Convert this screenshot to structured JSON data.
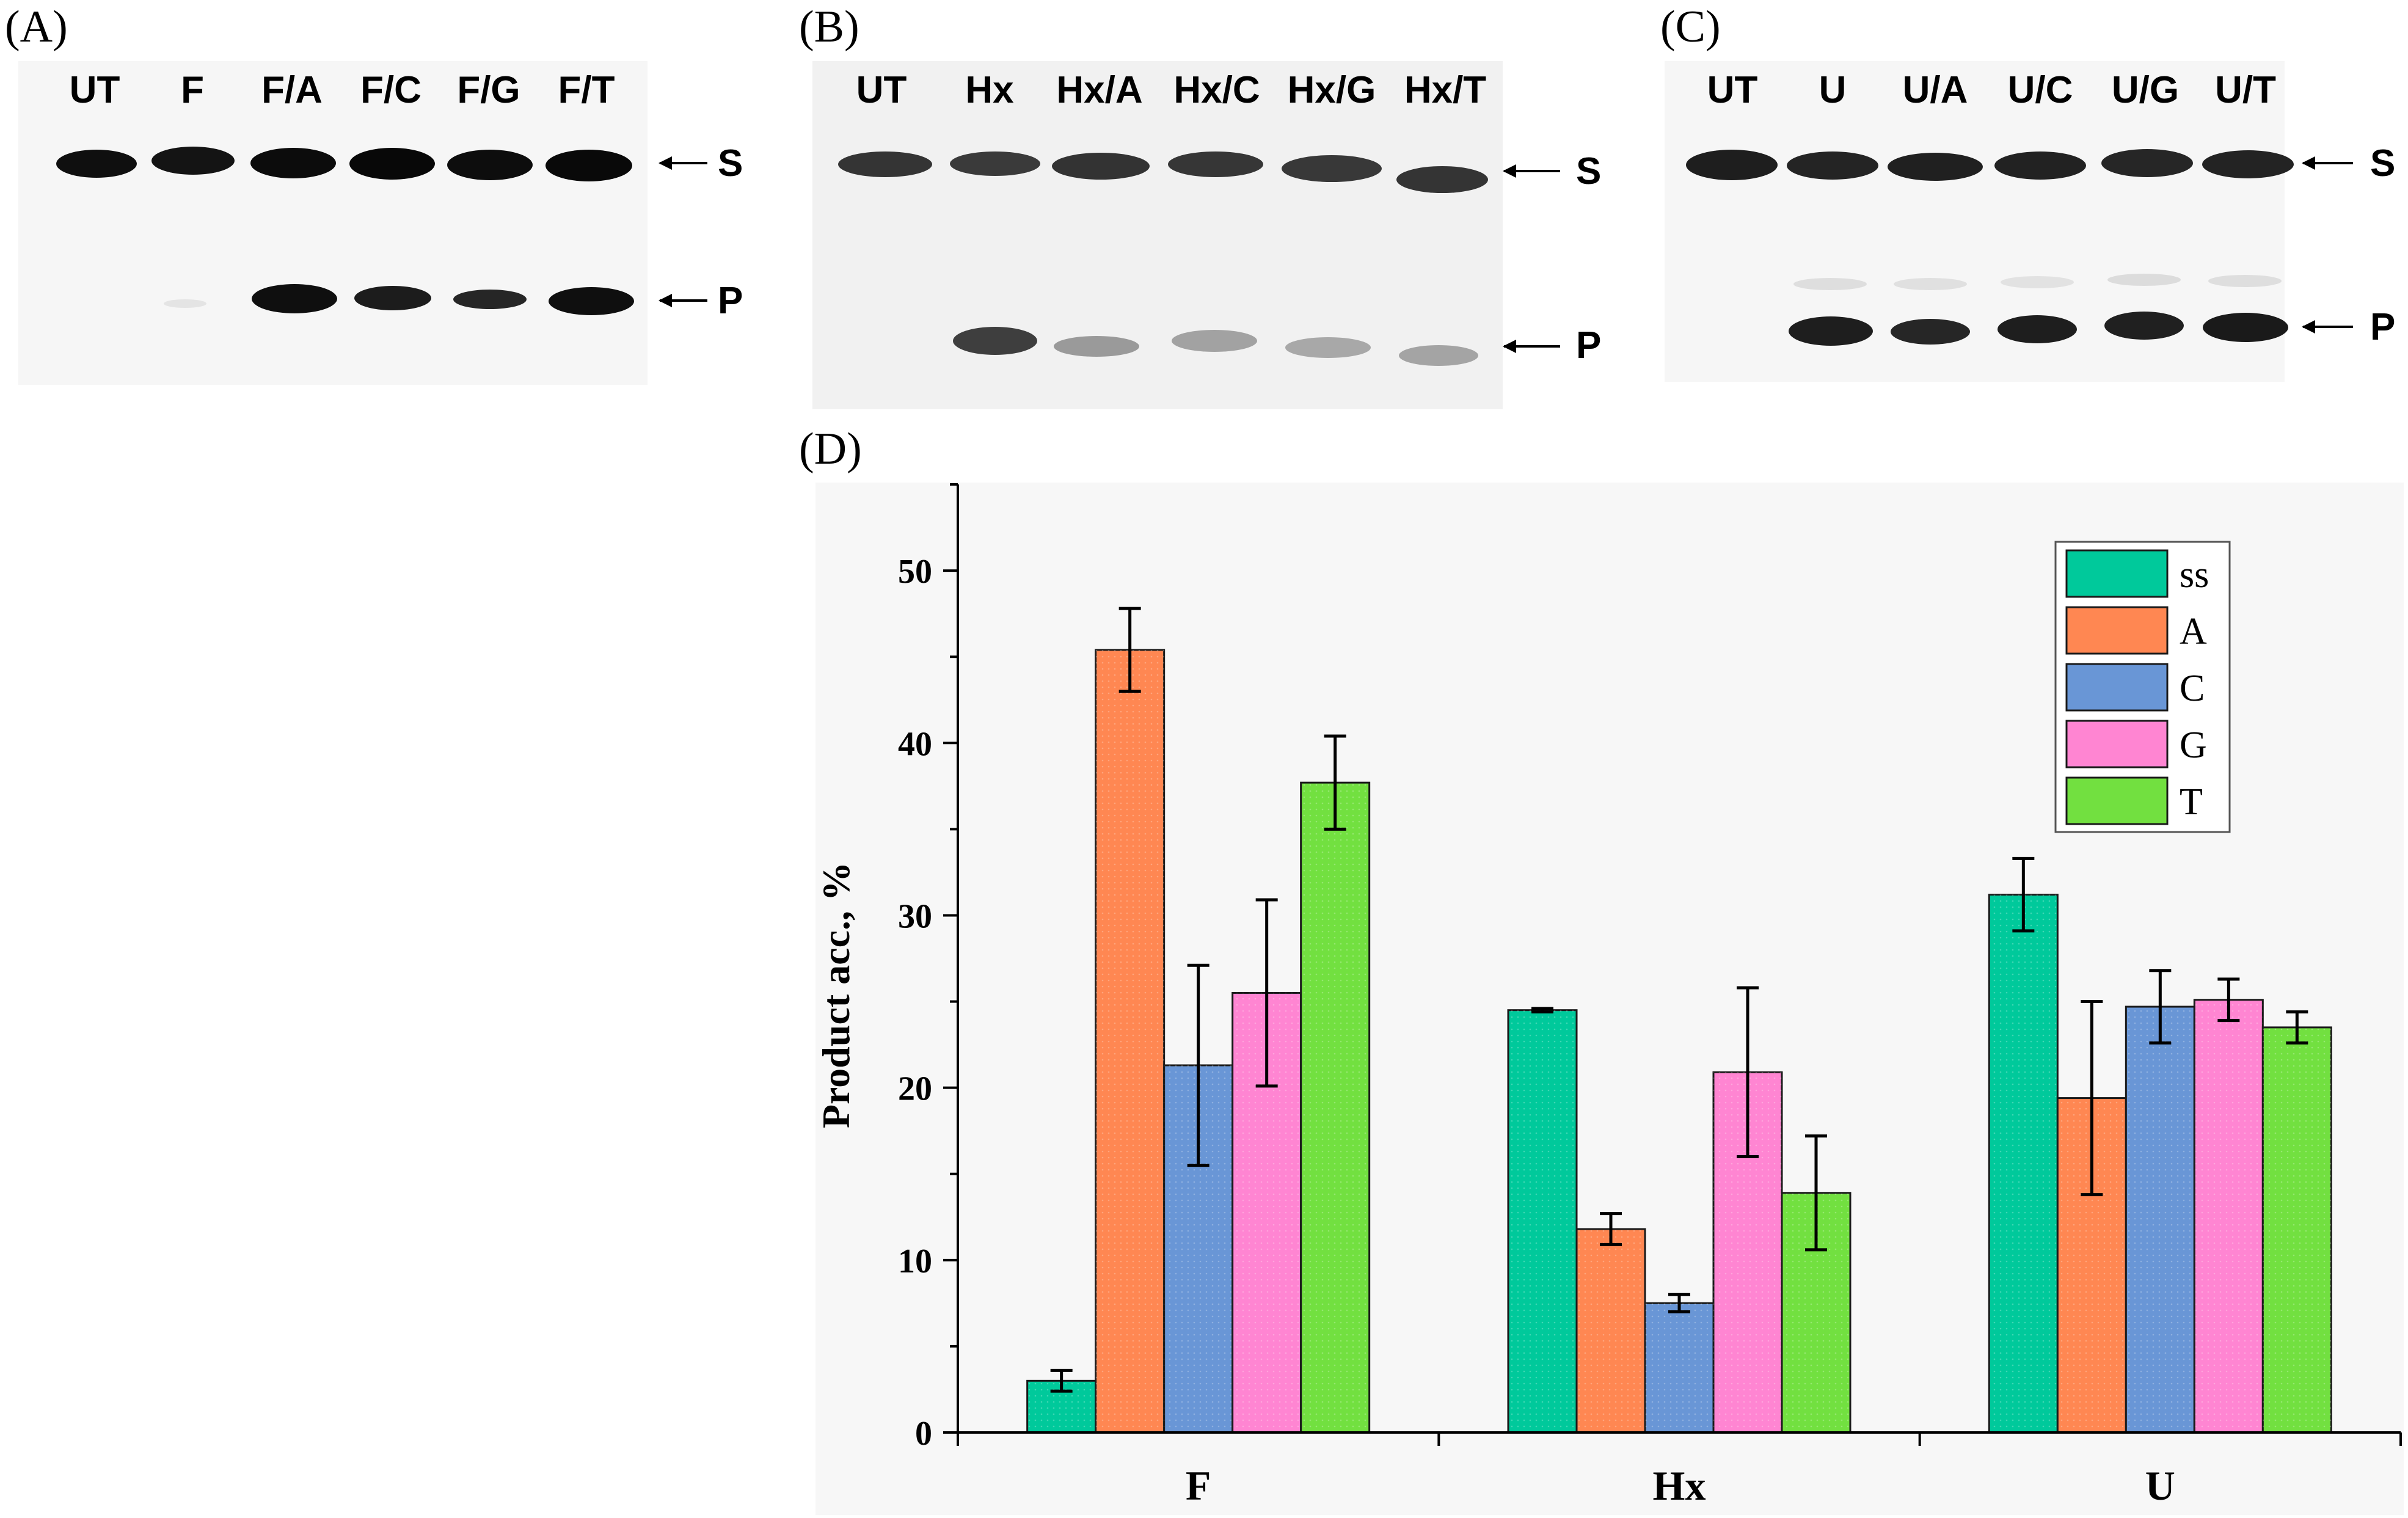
{
  "panels": [
    {
      "letter": "(A)",
      "lanes": [
        "UT",
        "F",
        "F/A",
        "F/C",
        "F/G",
        "F/T"
      ],
      "markers": [
        "S",
        "P"
      ]
    },
    {
      "letter": "(B)",
      "lanes": [
        "UT",
        "Hx",
        "Hx/A",
        "Hx/C",
        "Hx/G",
        "Hx/T"
      ],
      "markers": [
        "S",
        "P"
      ]
    },
    {
      "letter": "(C)",
      "lanes": [
        "UT",
        "U",
        "U/A",
        "U/C",
        "U/G",
        "U/T"
      ],
      "markers": [
        "S",
        "P"
      ]
    }
  ],
  "chart_panel_letter": "(D)",
  "colors": {
    "ss": "#00c99b",
    "A": "#ff8752",
    "C": "#6996d6",
    "G": "#ff85d2",
    "T": "#72e040"
  },
  "chart_data": {
    "type": "bar",
    "title": "",
    "xlabel": "",
    "ylabel": "Product acc., %",
    "categories": [
      "F",
      "Hx",
      "U"
    ],
    "ylim": [
      0,
      55
    ],
    "yticks": [
      0,
      10,
      20,
      30,
      40,
      50
    ],
    "series": [
      {
        "name": "ss",
        "values": [
          3.0,
          24.5,
          31.2
        ],
        "errors": [
          0.6,
          0.1,
          2.1
        ]
      },
      {
        "name": "A",
        "values": [
          45.4,
          11.8,
          19.4
        ],
        "errors": [
          2.4,
          0.9,
          5.6
        ]
      },
      {
        "name": "C",
        "values": [
          21.3,
          7.5,
          24.7
        ],
        "errors": [
          5.8,
          0.5,
          2.1
        ]
      },
      {
        "name": "G",
        "values": [
          25.5,
          20.9,
          25.1
        ],
        "errors": [
          5.4,
          4.9,
          1.2
        ]
      },
      {
        "name": "T",
        "values": [
          37.7,
          13.9,
          23.5
        ],
        "errors": [
          2.7,
          3.3,
          0.9
        ]
      }
    ],
    "legend_position": "top-right",
    "grid": false
  }
}
